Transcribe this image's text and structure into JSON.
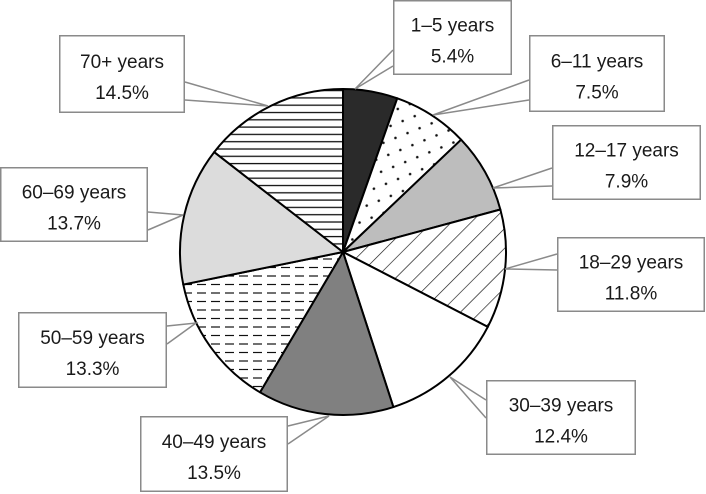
{
  "chart_data": {
    "type": "pie",
    "title": "",
    "start": "top",
    "direction": "clockwise",
    "slices": [
      {
        "label": "1–5 years",
        "value": 5.4,
        "value_label": "5.4%",
        "fill": "#2a2a2a",
        "pattern": "solid"
      },
      {
        "label": "6–11 years",
        "value": 7.5,
        "value_label": "7.5%",
        "fill": "#ffffff",
        "pattern": "dots"
      },
      {
        "label": "12–17 years",
        "value": 7.9,
        "value_label": "7.9%",
        "fill": "#bdbdbd",
        "pattern": "solid"
      },
      {
        "label": "18–29 years",
        "value": 11.8,
        "value_label": "11.8%",
        "fill": "#ffffff",
        "pattern": "diagonal-lines"
      },
      {
        "label": "30–39 years",
        "value": 12.4,
        "value_label": "12.4%",
        "fill": "#ffffff",
        "pattern": "solid"
      },
      {
        "label": "40–49 years",
        "value": 13.5,
        "value_label": "13.5%",
        "fill": "#808080",
        "pattern": "solid"
      },
      {
        "label": "50–59 years",
        "value": 13.3,
        "value_label": "13.3%",
        "fill": "#ffffff",
        "pattern": "dashes"
      },
      {
        "label": "60–69 years",
        "value": 13.7,
        "value_label": "13.7%",
        "fill": "#dcdcdc",
        "pattern": "solid"
      },
      {
        "label": "70+ years",
        "value": 14.5,
        "value_label": "14.5%",
        "fill": "#ffffff",
        "pattern": "horizontal-lines"
      }
    ]
  }
}
